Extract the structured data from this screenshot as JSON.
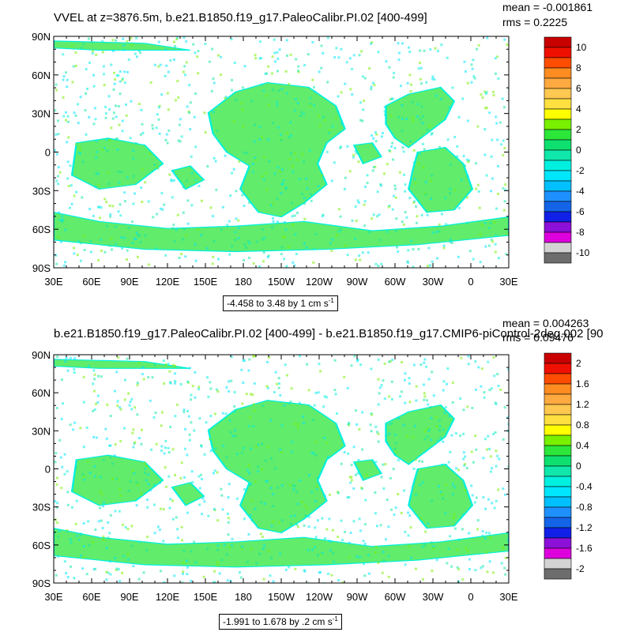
{
  "panels": [
    {
      "title": "VVEL at z=3876.5m, b.e21.B1850.f19_g17.PaleoCalibr.PI.02 [400-499]",
      "mean_text": "mean = -0.001861",
      "rms_text": "rms = 0.2225",
      "range_text": "-4.458 to 3.48 by 1 cm s",
      "range_exp": "-1",
      "colorbar": {
        "colors": [
          "#6d6d6d",
          "#d3d3d3",
          "#dd00dd",
          "#8c10d8",
          "#1020e6",
          "#1464e8",
          "#1e90ff",
          "#00c0ff",
          "#00e6ff",
          "#00f0e0",
          "#10e7aa",
          "#0ee070",
          "#2ce63a",
          "#78f000",
          "#ffff00",
          "#ffe040",
          "#ffc850",
          "#ffaa40",
          "#ff8c20",
          "#ff4d00",
          "#f01000",
          "#c80000"
        ],
        "labels": [
          "-10",
          "-8",
          "-6",
          "-4",
          "-2",
          "0",
          "2",
          "4",
          "6",
          "8",
          "10"
        ]
      }
    },
    {
      "title": "b.e21.B1850.f19_g17.PaleoCalibr.PI.02 [400-499] - b.e21.B1850.f19_g17.CMIP6-piControl-2deg.002 [90",
      "mean_text": "mean = 0.004263",
      "rms_text": "rms = 0.09476",
      "range_text": "-1.991 to 1.678 by .2 cm s",
      "range_exp": "-1",
      "colorbar": {
        "colors": [
          "#6d6d6d",
          "#d3d3d3",
          "#dd00dd",
          "#8c10d8",
          "#1020e6",
          "#1464e8",
          "#1e90ff",
          "#00c0ff",
          "#00e6ff",
          "#00f0e0",
          "#10e7aa",
          "#0ee070",
          "#2ce63a",
          "#78f000",
          "#ffff00",
          "#ffe040",
          "#ffc850",
          "#ffaa40",
          "#ff8c20",
          "#ff4d00",
          "#f01000",
          "#c80000"
        ],
        "labels": [
          "-2",
          "-1.6",
          "-1.2",
          "-0.8",
          "-0.4",
          "0",
          "0.4",
          "0.8",
          "1.2",
          "1.6",
          "2"
        ]
      }
    }
  ],
  "chart_data": [
    {
      "type": "heatmap",
      "title": "VVEL at z=3876.5m, b.e21.B1850.f19_g17.PaleoCalibr.PI.02 [400-499]",
      "x_ticks": [
        "30E",
        "60E",
        "90E",
        "120E",
        "150E",
        "180",
        "150W",
        "120W",
        "90W",
        "60W",
        "30W",
        "0",
        "30E"
      ],
      "y_ticks": [
        "90N",
        "60N",
        "30N",
        "0",
        "30S",
        "60S",
        "90S"
      ],
      "color_levels": [
        "-10",
        "-8",
        "-6",
        "-4",
        "-2",
        "0",
        "2",
        "4",
        "6",
        "8",
        "10"
      ],
      "mean": -0.001861,
      "rms": 0.2225,
      "min": -4.458,
      "max": 3.48,
      "interval": 1,
      "units": "cm s-1"
    },
    {
      "type": "heatmap",
      "title": "b.e21.B1850.f19_g17.PaleoCalibr.PI.02 [400-499] - b.e21.B1850.f19_g17.CMIP6-piControl-2deg.002 [90",
      "x_ticks": [
        "30E",
        "60E",
        "90E",
        "120E",
        "150E",
        "180",
        "150W",
        "120W",
        "90W",
        "60W",
        "30W",
        "0",
        "30E"
      ],
      "y_ticks": [
        "90N",
        "60N",
        "30N",
        "0",
        "30S",
        "60S",
        "90S"
      ],
      "color_levels": [
        "-2",
        "-1.6",
        "-1.2",
        "-0.8",
        "-0.4",
        "0",
        "0.4",
        "0.8",
        "1.2",
        "1.6",
        "2"
      ],
      "mean": 0.004263,
      "rms": 0.09476,
      "min": -1.991,
      "max": 1.678,
      "interval": 0.2,
      "units": "cm s-1"
    }
  ]
}
